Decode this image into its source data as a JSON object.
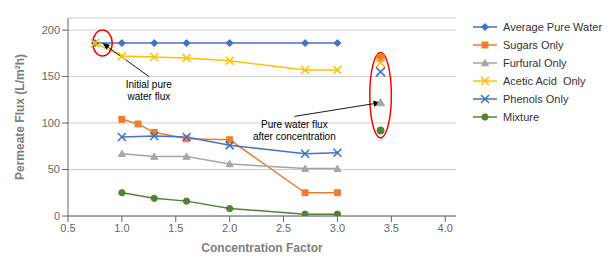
{
  "chart_data": {
    "type": "line",
    "xlabel": "Concentration Factor",
    "ylabel": "Permeate Flux (L/m²h)",
    "xlim": [
      0.5,
      4.1
    ],
    "ylim": [
      0.0,
      213
    ],
    "xticks": [
      0.5,
      {
        "value": 1.0,
        "label": "1.0"
      },
      1.5,
      {
        "value": 2.0,
        "label": "2.0"
      },
      2.5,
      {
        "value": 3.0,
        "label": "3.0"
      },
      3.5,
      {
        "value": 4.0,
        "label": "4.0"
      }
    ],
    "yticks": [
      0,
      50,
      100,
      150,
      200
    ],
    "grid": true,
    "legend": "right",
    "series": [
      {
        "name": "Average Pure Water",
        "type": "line",
        "color": "#4472C4",
        "marker": "diamond",
        "x": [
          0.75,
          1.0,
          1.3,
          1.6,
          2.0,
          2.7,
          3.0
        ],
        "values": [
          186,
          186,
          186,
          186,
          186,
          186,
          186
        ]
      },
      {
        "name": "Sugars Only",
        "type": "line",
        "color": "#ED7D31",
        "marker": "square",
        "x": [
          1.0,
          1.15,
          1.3,
          1.6,
          2.0,
          2.7,
          3.0
        ],
        "values": [
          104,
          99,
          90,
          83,
          82,
          25,
          25
        ]
      },
      {
        "name": "Furfural Only",
        "type": "line",
        "color": "#A5A5A5",
        "marker": "triangle",
        "x": [
          1.0,
          1.3,
          1.6,
          2.0,
          2.7,
          3.0
        ],
        "values": [
          67,
          64,
          64,
          56,
          51,
          51
        ]
      },
      {
        "name": "Acetic Acid  Only",
        "type": "line",
        "color": "#FFC000",
        "marker": "x",
        "x": [
          0.75,
          1.0,
          1.3,
          1.6,
          2.0,
          2.7,
          3.0
        ],
        "values": [
          186,
          172,
          171,
          170,
          167,
          157,
          157
        ]
      },
      {
        "name": "Phenols Only",
        "type": "line",
        "color": "#4472C4",
        "marker": "x",
        "x": [
          1.0,
          1.3,
          1.6,
          2.0,
          2.7,
          3.0
        ],
        "values": [
          85,
          86,
          85,
          76,
          67,
          68
        ]
      },
      {
        "name": "Mixture",
        "type": "line",
        "color": "#548235",
        "marker": "circle",
        "x": [
          1.0,
          1.3,
          1.6,
          2.0,
          2.7,
          3.0
        ],
        "values": [
          25,
          19,
          16,
          8,
          2,
          2
        ]
      },
      {
        "type": "scatter",
        "color": "#ED7D31",
        "marker": "square",
        "x": [
          3.4
        ],
        "values": [
          170
        ]
      },
      {
        "type": "scatter",
        "color": "#FFC000",
        "marker": "x",
        "x": [
          3.4
        ],
        "values": [
          165
        ]
      },
      {
        "type": "scatter",
        "color": "#4472C4",
        "marker": "x",
        "x": [
          3.4
        ],
        "values": [
          155
        ]
      },
      {
        "type": "scatter",
        "color": "#A5A5A5",
        "marker": "triangle",
        "x": [
          3.4
        ],
        "values": [
          122
        ]
      },
      {
        "type": "scatter",
        "color": "#548235",
        "marker": "circle",
        "x": [
          3.4
        ],
        "values": [
          92
        ]
      }
    ],
    "annotations": [
      {
        "text": "Initial pure\nwater flux",
        "xy": [
          0.82,
          186
        ],
        "xytext": [
          1.25,
          148
        ]
      },
      {
        "text": "Pure water flux\nafter concentration",
        "xy": [
          3.4,
          122
        ],
        "xytext": [
          2.6,
          105
        ]
      }
    ],
    "ellipses": [
      {
        "x": 0.82,
        "y": 186,
        "width": 0.18,
        "height": 28,
        "color": "red"
      },
      {
        "x": 3.4,
        "y": 130,
        "width": 0.2,
        "height": 92,
        "color": "red"
      }
    ]
  }
}
